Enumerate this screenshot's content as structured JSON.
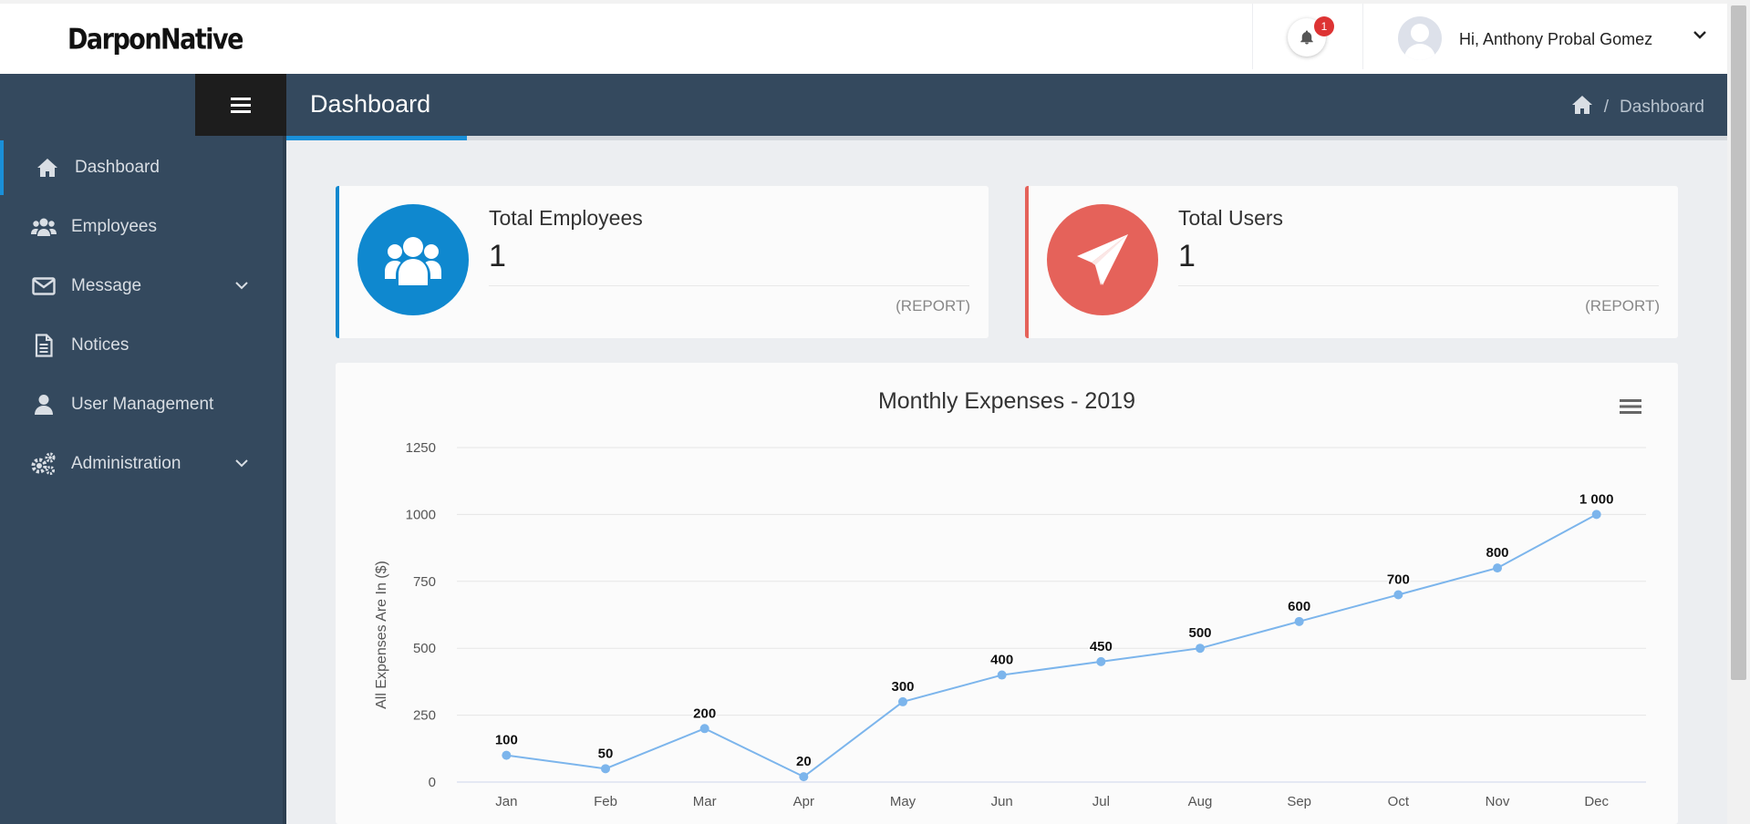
{
  "header": {
    "logo": "DarponNative",
    "notification_count": "1",
    "greeting": "Hi, Anthony Probal Gomez"
  },
  "sidebar": {
    "items": [
      {
        "label": "Dashboard",
        "icon": "home-icon"
      },
      {
        "label": "Employees",
        "icon": "users-icon"
      },
      {
        "label": "Message",
        "icon": "envelope-icon",
        "has_submenu": true
      },
      {
        "label": "Notices",
        "icon": "file-icon"
      },
      {
        "label": "User Management",
        "icon": "user-icon"
      },
      {
        "label": "Administration",
        "icon": "gears-icon",
        "has_submenu": true
      }
    ]
  },
  "page": {
    "title": "Dashboard",
    "breadcrumb": [
      "Dashboard"
    ],
    "breadcrumb_separator": "/"
  },
  "cards": [
    {
      "title": "Total Employees",
      "value": "1",
      "link": "(REPORT)",
      "color": "#0f88cf",
      "icon": "users-icon"
    },
    {
      "title": "Total Users",
      "value": "1",
      "link": "(REPORT)",
      "color": "#e5625a",
      "icon": "paper-plane-icon"
    }
  ],
  "chart_data": {
    "type": "line",
    "title": "Monthly Expenses - 2019",
    "ylabel": "All Expenses Are In ($)",
    "xlabel": "",
    "categories": [
      "Jan",
      "Feb",
      "Mar",
      "Apr",
      "May",
      "Jun",
      "Jul",
      "Aug",
      "Sep",
      "Oct",
      "Nov",
      "Dec"
    ],
    "values": [
      100,
      50,
      200,
      20,
      300,
      400,
      450,
      500,
      600,
      700,
      800,
      1000
    ],
    "data_labels": [
      "100",
      "50",
      "200",
      "20",
      "300",
      "400",
      "450",
      "500",
      "600",
      "700",
      "800",
      "1 000"
    ],
    "ylim": [
      0,
      1250
    ],
    "yticks": [
      "0",
      "250",
      "500",
      "750",
      "1000",
      "1250"
    ],
    "ytick_values": [
      0,
      250,
      500,
      750,
      1000,
      1250
    ],
    "grid": true,
    "legend": "none",
    "line_color": "#7cb5ec"
  },
  "colors": {
    "sidebar_bg": "#34495e",
    "accent": "#1a8fd8"
  }
}
